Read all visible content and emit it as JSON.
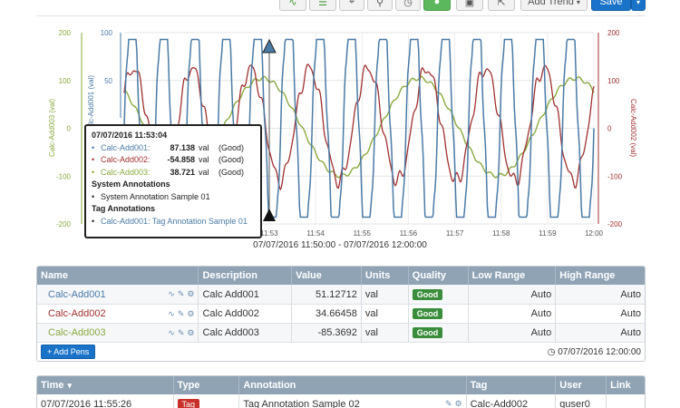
{
  "toolbar": {
    "add_trend_label": "Add Trend",
    "save_label": "Save"
  },
  "chart_data": {
    "type": "line",
    "x_range_label": "07/07/2016 11:50:00 - 07/07/2016 12:00:00",
    "x_ticks": [
      "11:53",
      "11:54",
      "11:55",
      "11:56",
      "11:57",
      "11:58",
      "11:59",
      "12:00"
    ],
    "left_outer_axis": {
      "label": "Calc-Add003 (val)",
      "ticks": [
        "200",
        "100",
        "0",
        "-100",
        "-200"
      ],
      "range": [
        -200,
        200
      ]
    },
    "left_inner_axis": {
      "label": "Calc-Add001 (val)",
      "ticks": [
        "100",
        "50"
      ],
      "range": [
        0,
        100
      ]
    },
    "right_axis": {
      "label": "Calc-Add002 (val)",
      "ticks": [
        "200",
        "100",
        "0",
        "-100",
        "-200"
      ],
      "range": [
        -200,
        200
      ]
    },
    "series": [
      {
        "name": "Calc-Add001",
        "color": "#4a7aa6",
        "shape": "clipped square wave",
        "min": 0,
        "max": 100,
        "cycles": 15
      },
      {
        "name": "Calc-Add002",
        "color": "#a03030",
        "shape": "noisy sine",
        "min": -110,
        "max": 125,
        "cycles": 8
      },
      {
        "name": "Calc-Add003",
        "color": "#8aaa40",
        "shape": "slow sine",
        "min": -100,
        "max": 105,
        "cycles": 3
      }
    ],
    "grid": true
  },
  "tooltip": {
    "timestamp": "07/07/2016 11:53:04",
    "rows": [
      {
        "name": "Calc-Add001:",
        "value": "87.138",
        "unit": "val",
        "quality": "(Good)",
        "color": "#4a7aa6"
      },
      {
        "name": "Calc-Add002:",
        "value": "-54.858",
        "unit": "val",
        "quality": "(Good)",
        "color": "#a03030"
      },
      {
        "name": "Calc-Add003:",
        "value": "38.721",
        "unit": "val",
        "quality": "(Good)",
        "color": "#8aaa40"
      }
    ],
    "system_header": "System Annotations",
    "system_item": "System Annotation Sample 01",
    "tag_header": "Tag Annotations",
    "tag_item": "Calc-Add001: Tag Annotation Sample 01"
  },
  "pens": {
    "headers": [
      "Name",
      "Description",
      "Value",
      "Units",
      "Quality",
      "Low Range",
      "High Range"
    ],
    "rows": [
      {
        "name": "Calc-Add001",
        "color": "#4a7aa6",
        "description": "Calc Add001",
        "value": "51.12712",
        "units": "val",
        "quality": "Good",
        "low": "Auto",
        "high": "Auto"
      },
      {
        "name": "Calc-Add002",
        "color": "#a03030",
        "description": "Calc Add002",
        "value": "34.66458",
        "units": "val",
        "quality": "Good",
        "low": "Auto",
        "high": "Auto"
      },
      {
        "name": "Calc-Add003",
        "color": "#8aaa40",
        "description": "Calc Add003",
        "value": "-85.3692",
        "units": "val",
        "quality": "Good",
        "low": "Auto",
        "high": "Auto"
      }
    ],
    "add_pens_label": "+ Add Pens",
    "footer_time": "07/07/2016 12:00:00"
  },
  "annotations": {
    "headers": [
      "Time",
      "Type",
      "Annotation",
      "Tag",
      "User",
      "Link"
    ],
    "rows": [
      {
        "time": "07/07/2016 11:55:26",
        "type": "Tag",
        "annotation": "Tag Annotation Sample 02",
        "tag": "Calc-Add002",
        "user": "quser0",
        "link": ""
      }
    ]
  }
}
